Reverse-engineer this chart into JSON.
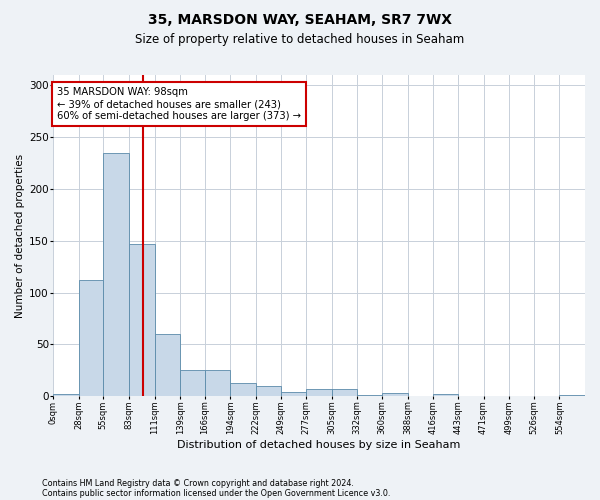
{
  "title": "35, MARSDON WAY, SEAHAM, SR7 7WX",
  "subtitle": "Size of property relative to detached houses in Seaham",
  "xlabel": "Distribution of detached houses by size in Seaham",
  "ylabel": "Number of detached properties",
  "bin_labels": [
    "0sqm",
    "28sqm",
    "55sqm",
    "83sqm",
    "111sqm",
    "139sqm",
    "166sqm",
    "194sqm",
    "222sqm",
    "249sqm",
    "277sqm",
    "305sqm",
    "332sqm",
    "360sqm",
    "388sqm",
    "416sqm",
    "443sqm",
    "471sqm",
    "499sqm",
    "526sqm",
    "554sqm"
  ],
  "bar_heights": [
    2,
    112,
    235,
    147,
    60,
    25,
    25,
    13,
    10,
    4,
    7,
    7,
    1,
    3,
    0,
    2,
    0,
    0,
    0,
    0,
    1
  ],
  "bar_color": "#c8d8e8",
  "bar_edge_color": "#5a8aaa",
  "vline_x": 98,
  "vline_color": "#cc0000",
  "annotation_text": "35 MARSDON WAY: 98sqm\n← 39% of detached houses are smaller (243)\n60% of semi-detached houses are larger (373) →",
  "annotation_box_color": "#ffffff",
  "annotation_box_edge_color": "#cc0000",
  "ylim": [
    0,
    310
  ],
  "yticks": [
    0,
    50,
    100,
    150,
    200,
    250,
    300
  ],
  "footer_line1": "Contains HM Land Registry data © Crown copyright and database right 2024.",
  "footer_line2": "Contains public sector information licensed under the Open Government Licence v3.0.",
  "background_color": "#eef2f6",
  "plot_background_color": "#ffffff",
  "grid_color": "#c8d0da",
  "bin_edges": [
    0,
    28,
    55,
    83,
    111,
    139,
    166,
    194,
    222,
    249,
    277,
    305,
    332,
    360,
    388,
    416,
    443,
    471,
    499,
    526,
    554,
    582
  ]
}
